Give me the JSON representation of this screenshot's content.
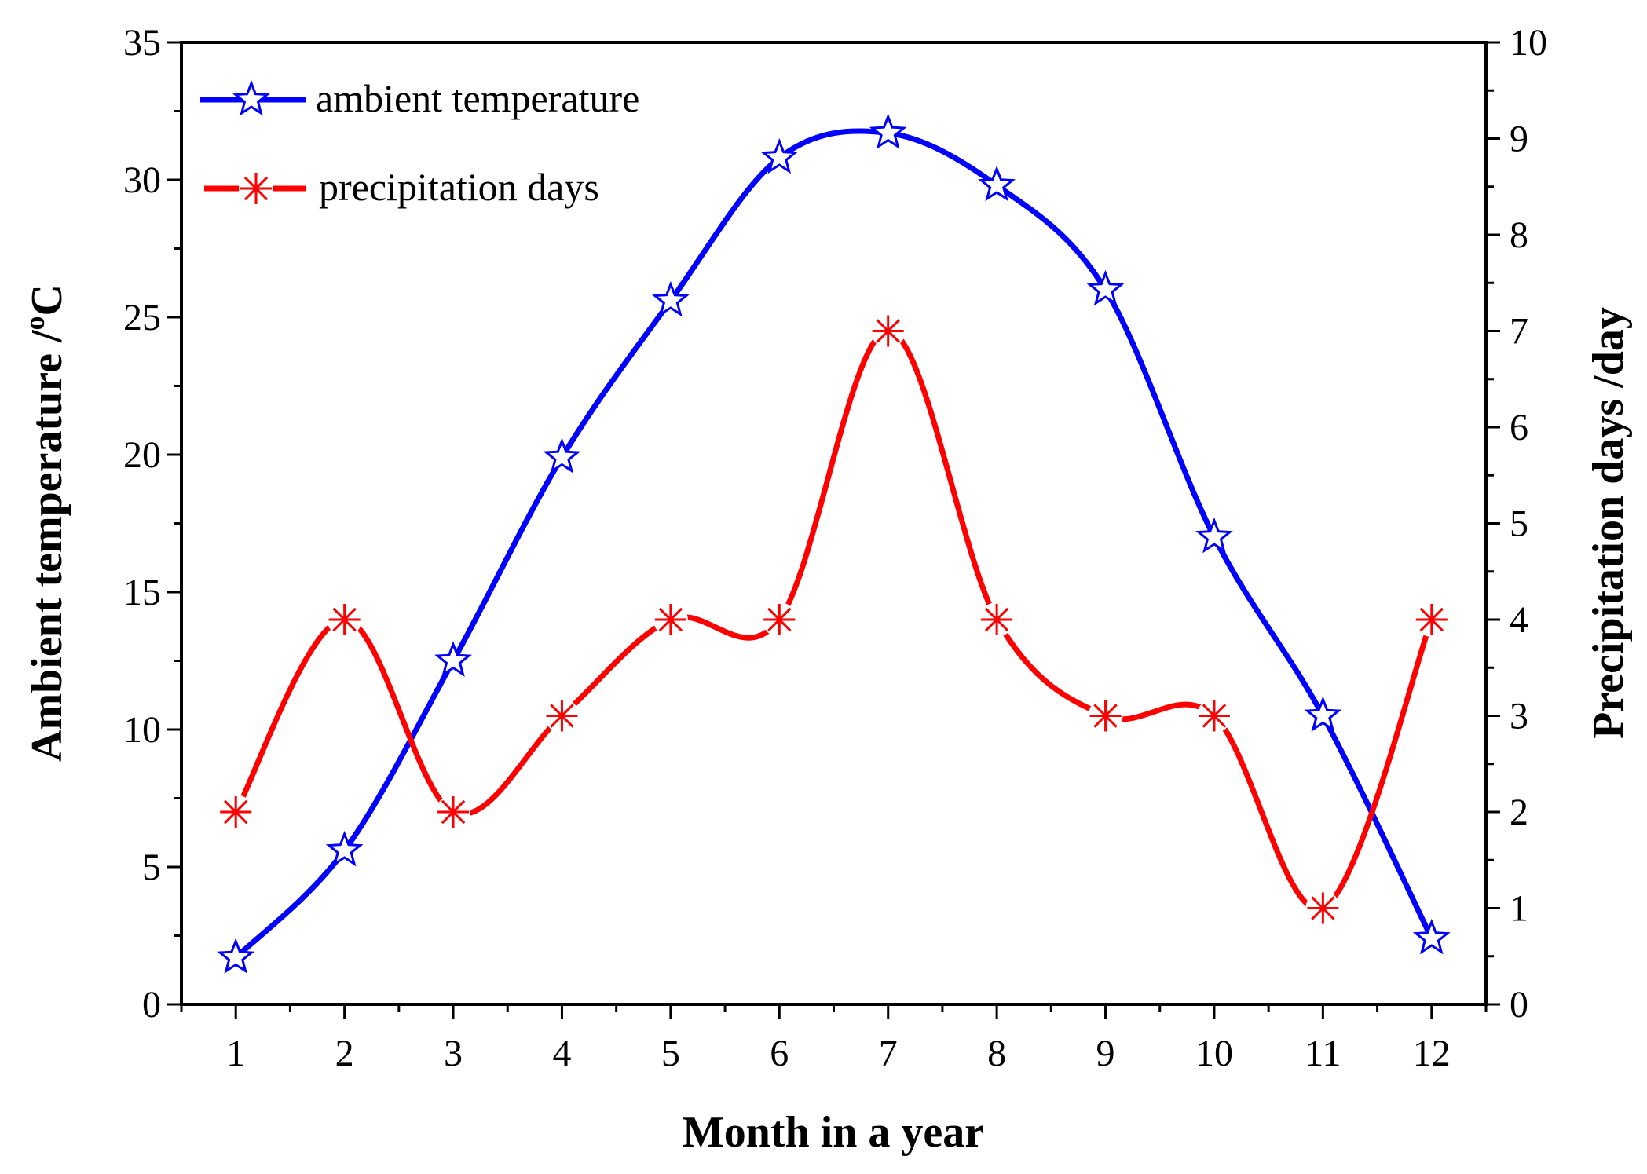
{
  "chart_data": {
    "type": "line",
    "title": "",
    "xlabel": "Month in a year",
    "ylabel": "Ambient temperature /",
    "ylabel_unit": "oC",
    "ylabel_sup": "o",
    "ylabel_tail": "C",
    "y2label": "Precipitation days /day",
    "x": [
      1,
      2,
      3,
      4,
      5,
      6,
      7,
      8,
      9,
      10,
      11,
      12
    ],
    "xlim": [
      0.5,
      12.5
    ],
    "ylim": [
      0,
      35
    ],
    "y2lim": [
      0,
      10
    ],
    "xticks": [
      1,
      2,
      3,
      4,
      5,
      6,
      7,
      8,
      9,
      10,
      11,
      12
    ],
    "yticks": [
      0,
      5,
      10,
      15,
      20,
      25,
      30,
      35
    ],
    "y2ticks": [
      0,
      1,
      2,
      3,
      4,
      5,
      6,
      7,
      8,
      9,
      10
    ],
    "grid": false,
    "legend_position": "top-left",
    "series": [
      {
        "name": "ambient temperature",
        "axis": "left",
        "color": "#0000ff",
        "marker": "star",
        "values": [
          1.7,
          5.6,
          12.5,
          19.9,
          25.6,
          30.8,
          31.7,
          29.8,
          26.0,
          17.0,
          10.5,
          2.4
        ]
      },
      {
        "name": "precipitation days",
        "axis": "right",
        "color": "#ff0000",
        "marker": "asterisk",
        "values": [
          2,
          4,
          2,
          3,
          4,
          4,
          7,
          4,
          3,
          3,
          1,
          4
        ]
      }
    ]
  }
}
